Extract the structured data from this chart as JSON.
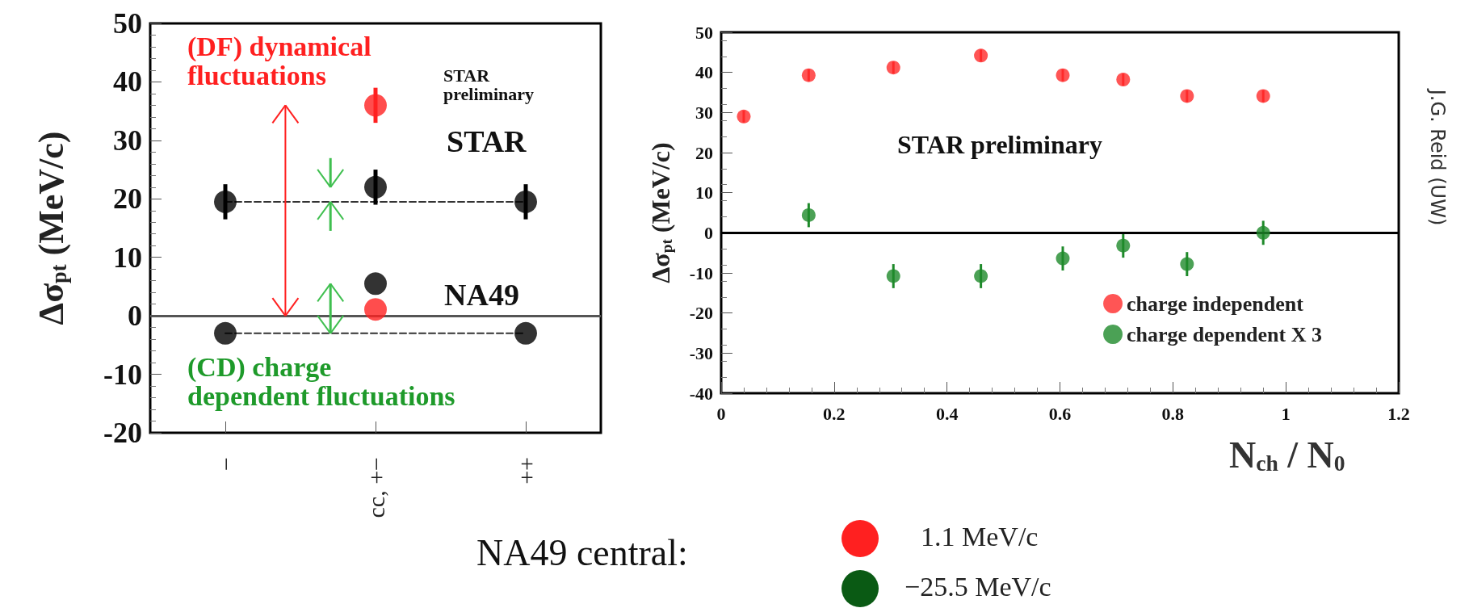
{
  "chart_data": [
    {
      "type": "scatter",
      "ylabel": "Δσ$_{pt}$ (MeV/c)",
      "categories": [
        "−",
        "cc, +−",
        "++"
      ],
      "ylim": [
        -20,
        50
      ],
      "yticks": [
        -20,
        -10,
        0,
        10,
        20,
        30,
        40,
        50
      ],
      "marker": "circle",
      "legend": false,
      "grid": false,
      "series": [
        {
          "type": "line",
          "color": "#333333",
          "values": [
            19.5,
            19.5,
            19.5
          ],
          "marker": "none",
          "line_style": "dashed"
        },
        {
          "type": "line",
          "color": "#333333",
          "values": [
            -3,
            -3,
            -3
          ],
          "marker": "none",
          "line_style": "dashed"
        },
        {
          "color": "#000000",
          "values": [
            19.5,
            22,
            19.5
          ],
          "errors": [
            3,
            3,
            3
          ]
        },
        {
          "color": "#000000",
          "values": [
            -3,
            5.5,
            -3
          ]
        },
        {
          "color": "#ff2020",
          "values": [
            null,
            36,
            null
          ],
          "errors": [
            null,
            3,
            null
          ]
        },
        {
          "color": "#ff2020",
          "values": [
            null,
            1.1,
            null
          ]
        }
      ],
      "ref_lines": [
        {
          "axis": "y",
          "value": 0,
          "color": "#555555"
        }
      ],
      "annotations": [
        "(DF) dynamical fluctuations",
        "STAR preliminary",
        "STAR",
        "NA49",
        "(CD) charge dependent fluctuations"
      ]
    },
    {
      "type": "scatter",
      "xlabel": "N$_{ch}$ / N$_{0}$",
      "ylabel": "Δσ$_{pt}$ (MeV/c)",
      "xlim": [
        0,
        1.2
      ],
      "xticks": [
        0,
        0.2,
        0.4,
        0.6,
        0.8,
        1,
        1.2
      ],
      "ylim": [
        -40,
        50
      ],
      "yticks": [
        -40,
        -30,
        -20,
        -10,
        0,
        10,
        20,
        30,
        40,
        50
      ],
      "marker": "circle",
      "legend": "bottom right",
      "grid": false,
      "series": [
        {
          "name": "charge independent",
          "color": "#ff2a2a",
          "x": [
            0.04,
            0.155,
            0.305,
            0.46,
            0.605,
            0.712,
            0.825,
            0.96
          ],
          "values": [
            29,
            39.3,
            41.2,
            44.2,
            39.3,
            38.2,
            34.1,
            34.1
          ],
          "errors": [
            1.5,
            1.5,
            1.5,
            1.5,
            1.5,
            1.5,
            1.5,
            1.5
          ]
        },
        {
          "name": "charge dependent X 3",
          "color": "#1e8a2a",
          "x": [
            0.155,
            0.305,
            0.46,
            0.605,
            0.712,
            0.825,
            0.96
          ],
          "values": [
            4.4,
            -10.8,
            -10.8,
            -6.4,
            -3.2,
            -7.8,
            0
          ],
          "errors": [
            3,
            3,
            3,
            3,
            3,
            3,
            3
          ]
        }
      ],
      "ref_lines": [
        {
          "axis": "y",
          "value": 0,
          "color": "#000000"
        }
      ],
      "annotations": [
        "STAR preliminary",
        "J.G. Reid (UW)"
      ]
    },
    {
      "type": "other",
      "title": "NA49 central:",
      "categories": [
        "1.1 MeV/c",
        "−25.5 MeV/c"
      ],
      "colors": [
        "#ff2020",
        "#0a5a14"
      ]
    }
  ]
}
